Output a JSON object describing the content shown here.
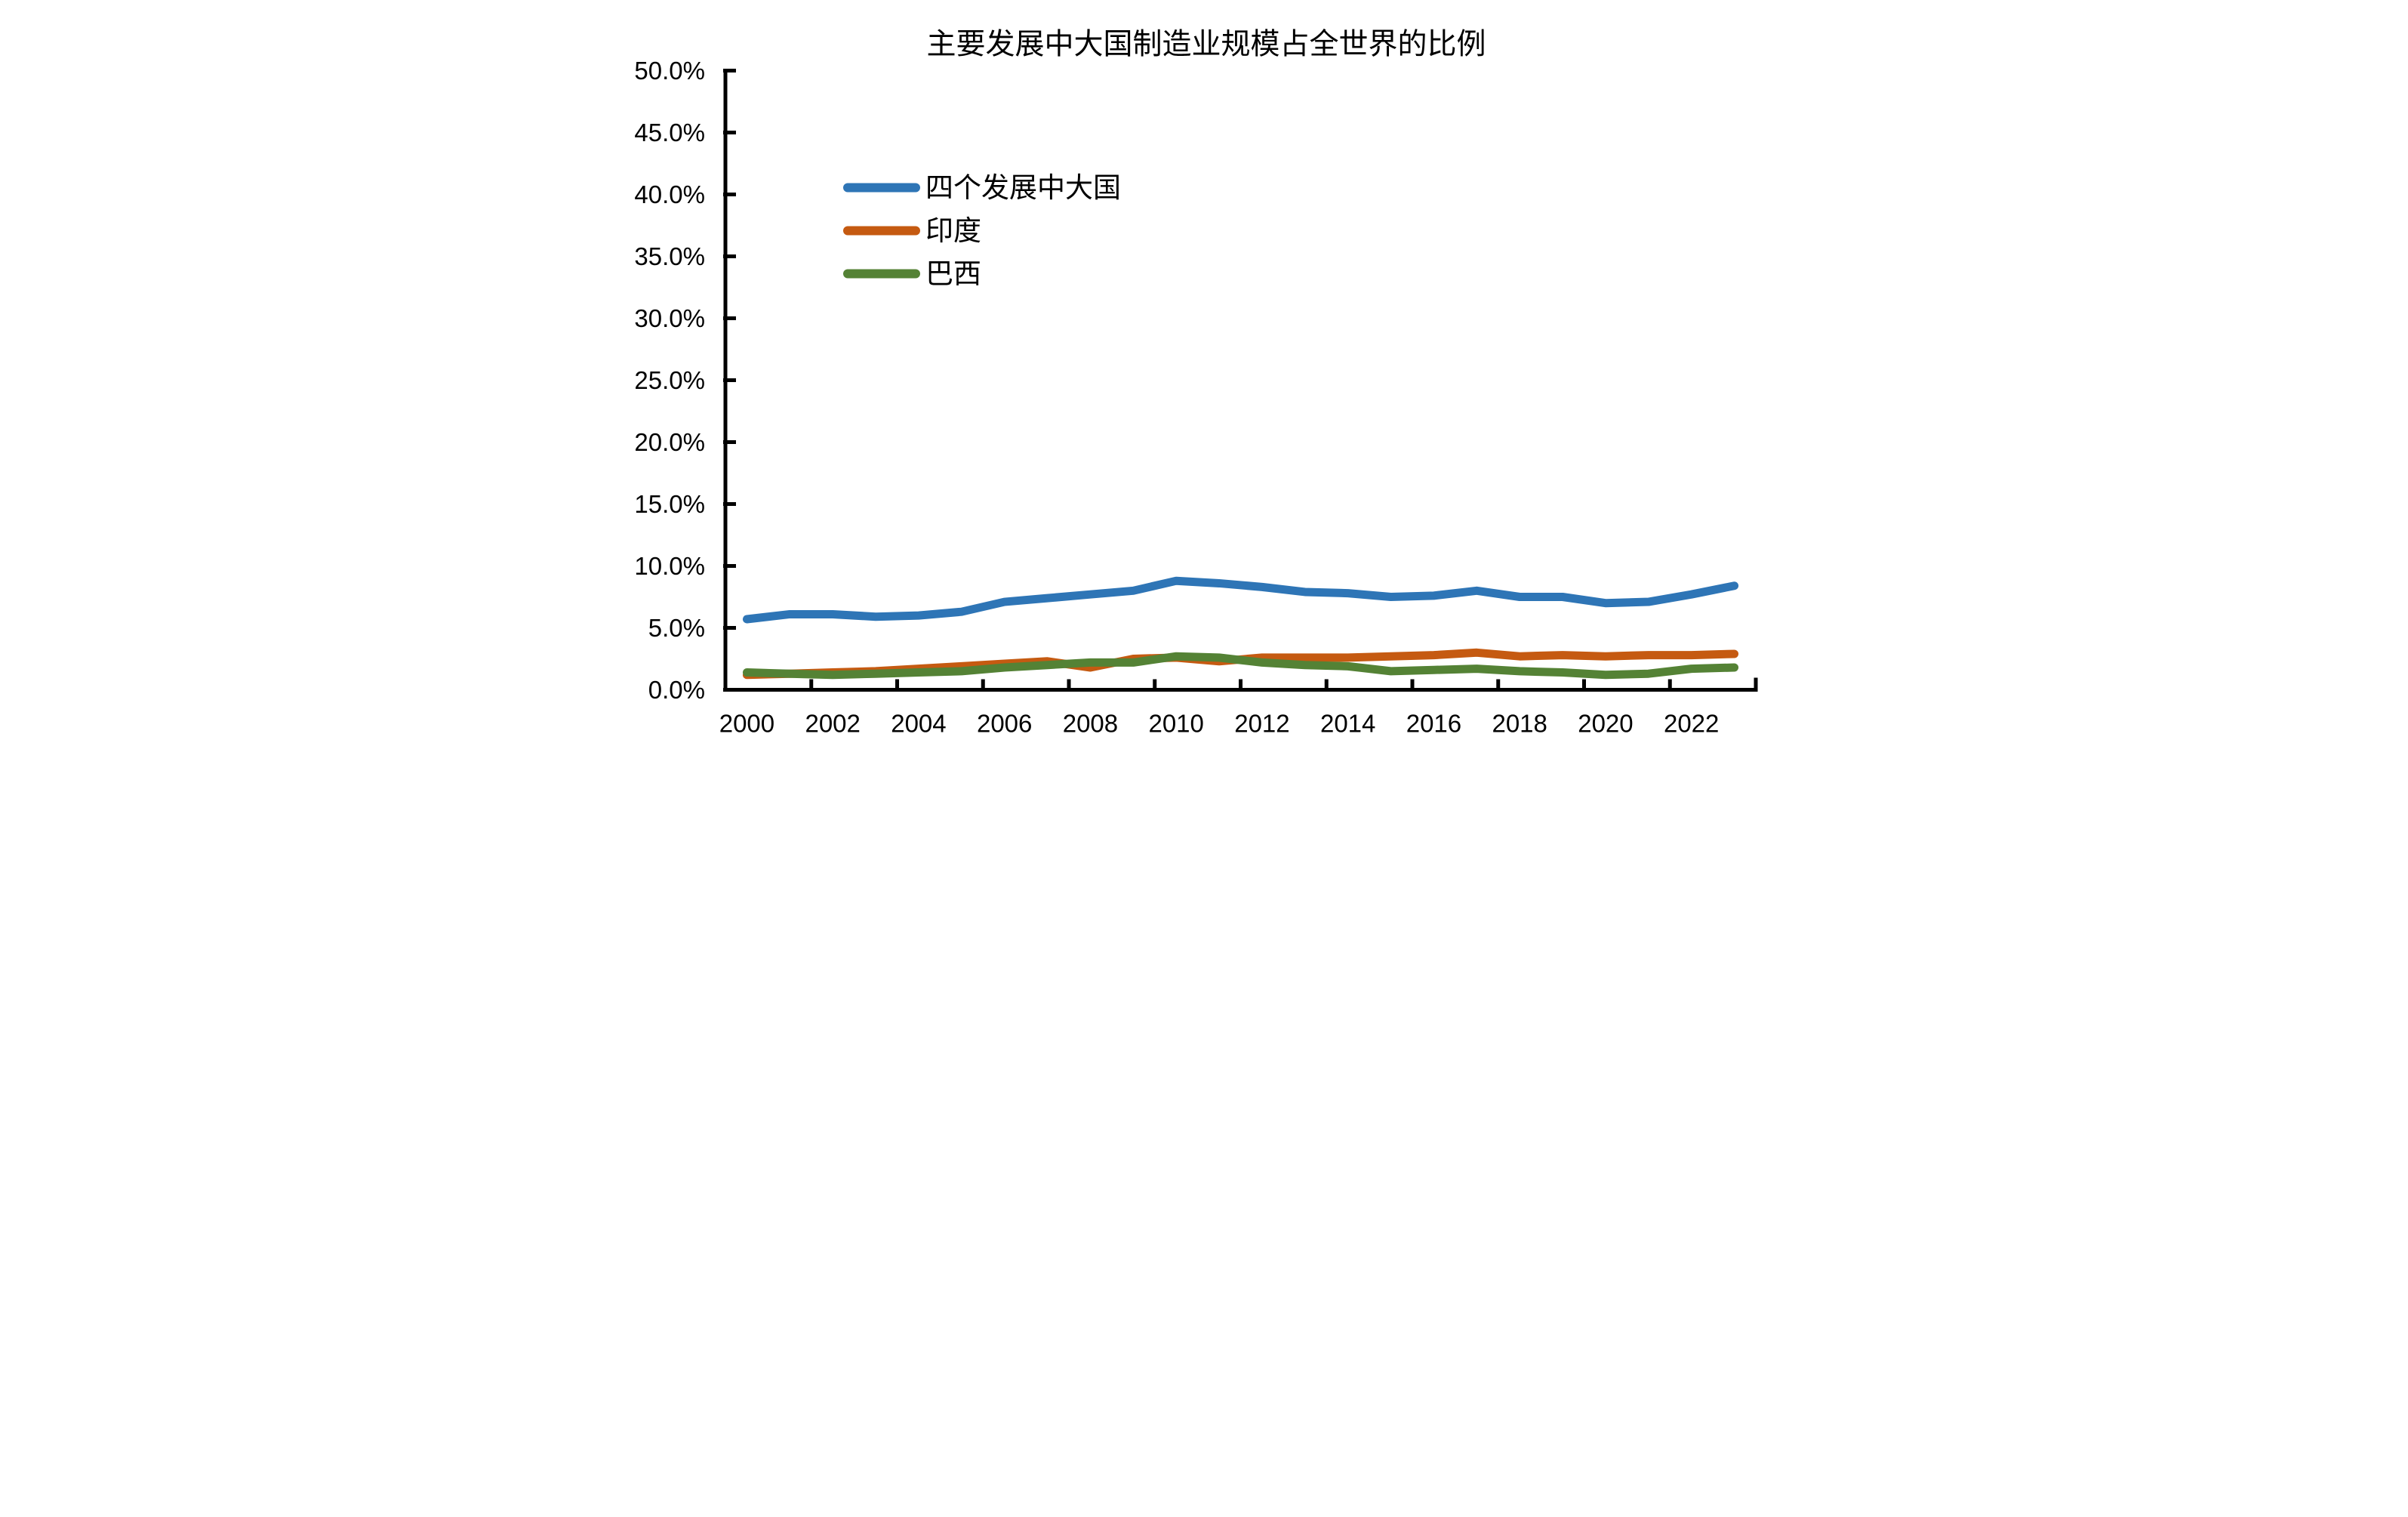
{
  "chart_data": {
    "type": "line",
    "title": "主要发展中大国制造业规模占全世界的比例",
    "x": [
      2000,
      2001,
      2002,
      2003,
      2004,
      2005,
      2006,
      2007,
      2008,
      2009,
      2010,
      2011,
      2012,
      2013,
      2014,
      2015,
      2016,
      2017,
      2018,
      2019,
      2020,
      2021,
      2022,
      2023
    ],
    "x_tick_labels": [
      "2000",
      "2002",
      "2004",
      "2006",
      "2008",
      "2010",
      "2012",
      "2014",
      "2016",
      "2018",
      "2020",
      "2022"
    ],
    "y_axis": {
      "min": 0,
      "max": 50,
      "step": 5,
      "unit": "%"
    },
    "y_tick_labels": [
      "0.0%",
      "5.0%",
      "10.0%",
      "15.0%",
      "20.0%",
      "25.0%",
      "30.0%",
      "35.0%",
      "40.0%",
      "45.0%",
      "50.0%"
    ],
    "grid": "off",
    "legend_position": "upper-left",
    "series": [
      {
        "name": "四个发展中大国",
        "color": "#2E75B6",
        "values": [
          5.7,
          6.1,
          6.1,
          5.9,
          6.0,
          6.3,
          7.1,
          7.4,
          7.7,
          8.0,
          8.8,
          8.6,
          8.3,
          7.9,
          7.8,
          7.5,
          7.6,
          8.0,
          7.5,
          7.5,
          7.0,
          7.1,
          7.7,
          8.4
        ]
      },
      {
        "name": "印度",
        "color": "#C55A11",
        "values": [
          1.2,
          1.3,
          1.4,
          1.5,
          1.7,
          1.9,
          2.1,
          2.3,
          1.8,
          2.5,
          2.6,
          2.3,
          2.6,
          2.6,
          2.6,
          2.7,
          2.8,
          3.0,
          2.7,
          2.8,
          2.7,
          2.8,
          2.8,
          2.9
        ]
      },
      {
        "name": "巴西",
        "color": "#548235",
        "values": [
          1.4,
          1.3,
          1.2,
          1.3,
          1.4,
          1.5,
          1.8,
          2.0,
          2.2,
          2.2,
          2.7,
          2.6,
          2.2,
          2.0,
          1.9,
          1.5,
          1.6,
          1.7,
          1.5,
          1.4,
          1.2,
          1.3,
          1.7,
          1.8
        ]
      }
    ]
  }
}
